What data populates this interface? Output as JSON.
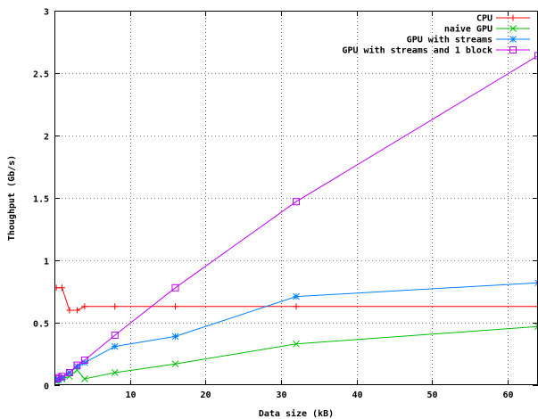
{
  "chart_data": {
    "type": "line",
    "title": "",
    "xlabel": "Data size (kB)",
    "ylabel": "Thoughput (Gb/s)",
    "xlim": [
      0,
      64
    ],
    "ylim": [
      0,
      3
    ],
    "xticks": [
      10,
      20,
      30,
      40,
      50,
      60
    ],
    "yticks": [
      0,
      0.5,
      1,
      1.5,
      2,
      2.5,
      3
    ],
    "xtick_labels": [
      "10",
      "20",
      "30",
      "40",
      "50",
      "60"
    ],
    "ytick_labels": [
      "0",
      "0.5",
      "1",
      "1.5",
      "2",
      "2.5",
      "3"
    ],
    "grid": true,
    "legend_position": "top-right",
    "series": [
      {
        "name": "CPU",
        "color": "#ff0000",
        "marker": "plus",
        "points": [
          [
            0.25,
            0.78
          ],
          [
            1,
            0.78
          ],
          [
            2,
            0.6
          ],
          [
            3,
            0.6
          ],
          [
            4,
            0.63
          ],
          [
            8,
            0.63
          ],
          [
            16,
            0.63
          ],
          [
            32,
            0.63
          ],
          [
            64,
            0.63
          ]
        ]
      },
      {
        "name": "naive GPU",
        "color": "#00c000",
        "marker": "cross",
        "points": [
          [
            0.25,
            0.03
          ],
          [
            0.5,
            0.04
          ],
          [
            1,
            0.05
          ],
          [
            2,
            0.07
          ],
          [
            3,
            0.12
          ],
          [
            4,
            0.05
          ],
          [
            8,
            0.1
          ],
          [
            16,
            0.17
          ],
          [
            32,
            0.33
          ],
          [
            64,
            0.47
          ]
        ]
      },
      {
        "name": "GPU with streams",
        "color": "#0080ff",
        "marker": "star",
        "points": [
          [
            0.25,
            0.04
          ],
          [
            0.5,
            0.05
          ],
          [
            1,
            0.06
          ],
          [
            2,
            0.1
          ],
          [
            3,
            0.15
          ],
          [
            4,
            0.18
          ],
          [
            8,
            0.31
          ],
          [
            16,
            0.39
          ],
          [
            32,
            0.71
          ],
          [
            64,
            0.82
          ]
        ]
      },
      {
        "name": "GPU with streams and 1 block",
        "color": "#c000ff",
        "marker": "box",
        "points": [
          [
            0.25,
            0.05
          ],
          [
            0.5,
            0.06
          ],
          [
            1,
            0.07
          ],
          [
            2,
            0.1
          ],
          [
            3,
            0.16
          ],
          [
            4,
            0.2
          ],
          [
            8,
            0.4
          ],
          [
            16,
            0.78
          ],
          [
            32,
            1.47
          ],
          [
            64,
            2.64
          ]
        ]
      }
    ]
  }
}
